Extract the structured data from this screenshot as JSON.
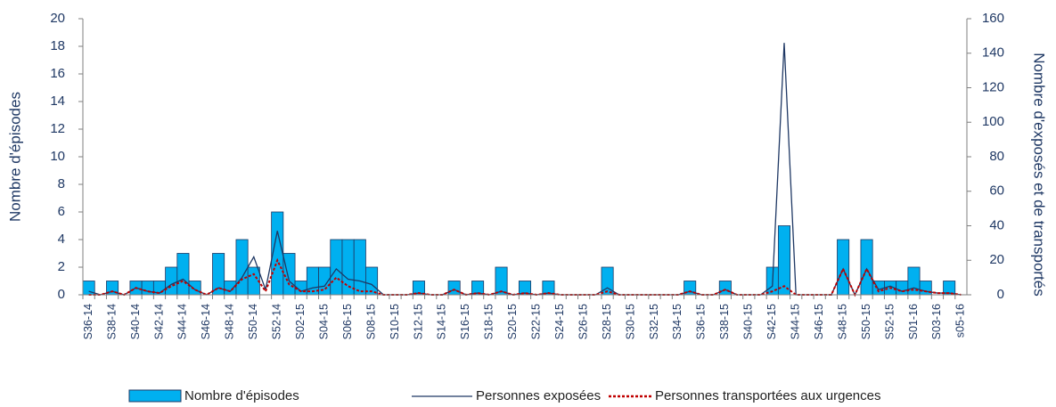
{
  "chart_data": {
    "type": "bar",
    "y_label": "Nombre d'épisodes",
    "y2_label": "Nombre d'exposés et de transportés",
    "categories": [
      "S36-14",
      null,
      "S38-14",
      null,
      "S40-14",
      null,
      "S42-14",
      null,
      "S44-14",
      null,
      "S46-14",
      null,
      "S48-14",
      null,
      "S50-14",
      null,
      "S52-14",
      null,
      "S02-15",
      null,
      "S04-15",
      null,
      "S06-15",
      null,
      "S08-15",
      null,
      "S10-15",
      null,
      "S12-15",
      null,
      "S14-15",
      null,
      "S16-15",
      null,
      "S18-15",
      null,
      "S20-15",
      null,
      "S22-15",
      null,
      "S24-15",
      null,
      "S26-15",
      null,
      "S28-15",
      null,
      "S30-15",
      null,
      "S32-15",
      null,
      "S34-15",
      null,
      "S36-15",
      null,
      "S38-15",
      null,
      "S40-15",
      null,
      "S42-15",
      null,
      "S44-15",
      null,
      "S46-15",
      null,
      "S48-15",
      null,
      "S50-15",
      null,
      "S52-15",
      null,
      "S01-16",
      null,
      "S03-16",
      null,
      "s05-16"
    ],
    "series": [
      {
        "name": "Nombre d'épisodes",
        "color": "#00b0f0",
        "values": [
          1,
          0,
          1,
          0,
          1,
          1,
          1,
          2,
          3,
          1,
          0,
          3,
          1,
          4,
          2,
          0,
          6,
          3,
          1,
          2,
          2,
          4,
          4,
          4,
          2,
          0,
          0,
          0,
          1,
          0,
          0,
          1,
          0,
          1,
          0,
          2,
          0,
          1,
          0,
          1,
          0,
          0,
          0,
          0,
          2,
          0,
          0,
          0,
          0,
          0,
          0,
          1,
          0,
          0,
          1,
          0,
          0,
          0,
          2,
          5,
          0,
          0,
          0,
          0,
          4,
          0,
          4,
          1,
          1,
          1,
          2,
          1,
          0,
          1,
          0
        ]
      },
      {
        "name": "Personnes exposées",
        "color": "#1f3864",
        "axis": "y2",
        "values": [
          2,
          0,
          2,
          0,
          4,
          2,
          1,
          6,
          9,
          3,
          0,
          4,
          2,
          10,
          22,
          3,
          37,
          8,
          2,
          4,
          5,
          15,
          9,
          8,
          6,
          0,
          0,
          0,
          1,
          0,
          0,
          3,
          0,
          1,
          0,
          2,
          0,
          1,
          0,
          1,
          0,
          0,
          0,
          0,
          4,
          0,
          0,
          0,
          0,
          0,
          0,
          2,
          0,
          0,
          3,
          0,
          0,
          0,
          5,
          146,
          0,
          0,
          0,
          0,
          15,
          0,
          15,
          3,
          5,
          2,
          4,
          2,
          1,
          1,
          0
        ]
      },
      {
        "name": "Personnes transportées aux urgences",
        "color": "#c00000",
        "axis": "y2",
        "dashed": true,
        "values": [
          0,
          0,
          2,
          0,
          4,
          2,
          1,
          5,
          8,
          3,
          0,
          4,
          2,
          9,
          12,
          2,
          20,
          6,
          2,
          2,
          3,
          10,
          5,
          2,
          2,
          0,
          0,
          0,
          1,
          0,
          0,
          3,
          0,
          1,
          0,
          2,
          0,
          1,
          0,
          1,
          0,
          0,
          0,
          0,
          2,
          0,
          0,
          0,
          0,
          0,
          0,
          2,
          0,
          0,
          3,
          0,
          0,
          0,
          2,
          5,
          0,
          0,
          0,
          0,
          15,
          0,
          15,
          2,
          4,
          2,
          3,
          2,
          1,
          1,
          0
        ]
      }
    ],
    "ylim": [
      0,
      20
    ],
    "yticks": [
      0,
      2,
      4,
      6,
      8,
      10,
      12,
      14,
      16,
      18,
      20
    ],
    "y2lim": [
      0,
      160
    ],
    "y2ticks": [
      0,
      20,
      40,
      60,
      80,
      100,
      120,
      140,
      160
    ]
  }
}
